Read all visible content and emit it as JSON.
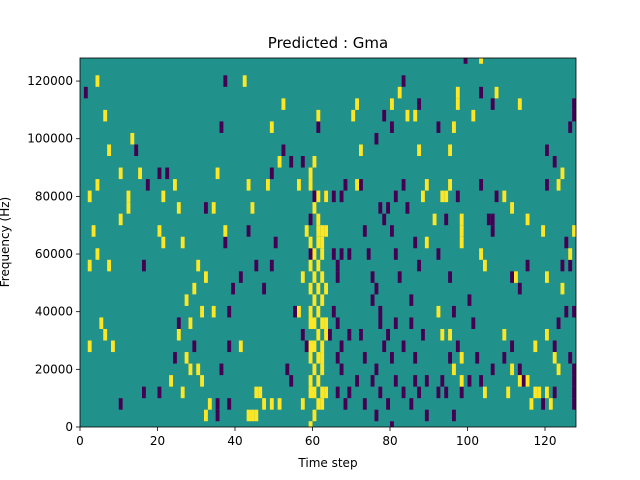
{
  "chart_data": {
    "type": "heatmap",
    "title": "Predicted : Gma",
    "xlabel": "Time step",
    "ylabel": "Frequency (Hz)",
    "xlim": [
      0,
      128
    ],
    "ylim": [
      0,
      128000
    ],
    "xticks": [
      0,
      20,
      40,
      60,
      80,
      100,
      120
    ],
    "yticks": [
      0,
      20000,
      40000,
      60000,
      80000,
      100000,
      120000
    ],
    "xtick_labels": [
      "0",
      "20",
      "40",
      "60",
      "80",
      "100",
      "120"
    ],
    "ytick_labels": [
      "0",
      "20000",
      "40000",
      "60000",
      "80000",
      "100000",
      "120000"
    ],
    "grid": false,
    "colormap": {
      "background": "#21918c",
      "low": "#440154",
      "high": "#fde725"
    },
    "cell_width_steps": 1,
    "cell_height_hz": 4000,
    "low_cells": [
      [
        2,
        118000
      ],
      [
        38,
        122000
      ],
      [
        37,
        106000
      ],
      [
        15,
        98000
      ],
      [
        21,
        90000
      ],
      [
        23,
        90000
      ],
      [
        18,
        86000
      ],
      [
        17,
        58000
      ],
      [
        38,
        66000
      ],
      [
        44,
        70000
      ],
      [
        33,
        78000
      ],
      [
        40,
        50000
      ],
      [
        39,
        42000
      ],
      [
        26,
        38000
      ],
      [
        39,
        30000
      ],
      [
        30,
        30000
      ],
      [
        25,
        26000
      ],
      [
        37,
        22000
      ],
      [
        17,
        14000
      ],
      [
        21,
        14000
      ],
      [
        11,
        10000
      ],
      [
        36,
        10000
      ],
      [
        39,
        10000
      ],
      [
        36,
        6000
      ],
      [
        48,
        50000
      ],
      [
        56,
        42000
      ],
      [
        58,
        34000
      ],
      [
        59,
        30000
      ],
      [
        60,
        74000
      ],
      [
        61,
        82000
      ],
      [
        58,
        94000
      ],
      [
        64,
        82000
      ],
      [
        66,
        82000
      ],
      [
        68,
        82000
      ],
      [
        69,
        86000
      ],
      [
        73,
        86000
      ],
      [
        66,
        62000
      ],
      [
        67,
        58000
      ],
      [
        67,
        54000
      ],
      [
        68,
        62000
      ],
      [
        70,
        62000
      ],
      [
        75,
        62000
      ],
      [
        74,
        70000
      ],
      [
        78,
        78000
      ],
      [
        79,
        74000
      ],
      [
        80,
        78000
      ],
      [
        81,
        70000
      ],
      [
        82,
        62000
      ],
      [
        82,
        82000
      ],
      [
        84,
        86000
      ],
      [
        85,
        78000
      ],
      [
        83,
        54000
      ],
      [
        87,
        66000
      ],
      [
        88,
        58000
      ],
      [
        76,
        54000
      ],
      [
        77,
        50000
      ],
      [
        76,
        46000
      ],
      [
        78,
        42000
      ],
      [
        78,
        38000
      ],
      [
        80,
        34000
      ],
      [
        82,
        38000
      ],
      [
        86,
        46000
      ],
      [
        84,
        30000
      ],
      [
        86,
        38000
      ],
      [
        87,
        26000
      ],
      [
        89,
        34000
      ],
      [
        67,
        38000
      ],
      [
        68,
        30000
      ],
      [
        67,
        26000
      ],
      [
        68,
        22000
      ],
      [
        65,
        34000
      ],
      [
        66,
        42000
      ],
      [
        70,
        34000
      ],
      [
        73,
        34000
      ],
      [
        74,
        26000
      ],
      [
        77,
        22000
      ],
      [
        79,
        30000
      ],
      [
        81,
        26000
      ],
      [
        67,
        14000
      ],
      [
        70,
        14000
      ],
      [
        72,
        18000
      ],
      [
        76,
        18000
      ],
      [
        78,
        14000
      ],
      [
        80,
        10000
      ],
      [
        82,
        18000
      ],
      [
        84,
        14000
      ],
      [
        87,
        18000
      ],
      [
        88,
        14000
      ],
      [
        90,
        18000
      ],
      [
        93,
        14000
      ],
      [
        69,
        10000
      ],
      [
        74,
        10000
      ],
      [
        77,
        6000
      ],
      [
        81,
        2000
      ],
      [
        86,
        10000
      ],
      [
        90,
        6000
      ],
      [
        94,
        18000
      ],
      [
        95,
        14000
      ],
      [
        96,
        26000
      ],
      [
        98,
        30000
      ],
      [
        97,
        42000
      ],
      [
        96,
        54000
      ],
      [
        93,
        62000
      ],
      [
        95,
        74000
      ],
      [
        98,
        82000
      ],
      [
        106,
        74000
      ],
      [
        107,
        70000
      ],
      [
        108,
        82000
      ],
      [
        104,
        86000
      ],
      [
        107,
        74000
      ],
      [
        112,
        54000
      ],
      [
        114,
        50000
      ],
      [
        116,
        58000
      ],
      [
        125,
        58000
      ],
      [
        126,
        66000
      ],
      [
        127,
        58000
      ],
      [
        121,
        86000
      ],
      [
        121,
        98000
      ],
      [
        123,
        94000
      ],
      [
        127,
        106000
      ],
      [
        128,
        110000
      ],
      [
        128,
        114000
      ],
      [
        100,
        130000
      ],
      [
        104,
        118000
      ],
      [
        107,
        114000
      ],
      [
        93,
        106000
      ],
      [
        88,
        114000
      ],
      [
        84,
        122000
      ],
      [
        79,
        110000
      ],
      [
        81,
        106000
      ],
      [
        77,
        102000
      ],
      [
        62,
        106000
      ],
      [
        55,
        94000
      ],
      [
        53,
        98000
      ],
      [
        50,
        90000
      ],
      [
        124,
        38000
      ],
      [
        123,
        30000
      ],
      [
        126,
        42000
      ],
      [
        128,
        42000
      ],
      [
        128,
        22000
      ],
      [
        128,
        18000
      ],
      [
        128,
        14000
      ],
      [
        128,
        10000
      ],
      [
        127,
        26000
      ],
      [
        123,
        14000
      ],
      [
        120,
        10000
      ],
      [
        115,
        18000
      ],
      [
        114,
        22000
      ],
      [
        112,
        30000
      ],
      [
        110,
        26000
      ],
      [
        107,
        22000
      ],
      [
        104,
        18000
      ],
      [
        101,
        18000
      ],
      [
        99,
        14000
      ],
      [
        97,
        6000
      ],
      [
        101,
        46000
      ],
      [
        102,
        38000
      ],
      [
        103,
        26000
      ],
      [
        54,
        22000
      ],
      [
        55,
        18000
      ],
      [
        46,
        58000
      ],
      [
        50,
        58000
      ],
      [
        51,
        66000
      ],
      [
        42,
        54000
      ],
      [
        60,
        62000
      ]
    ],
    "high_cells": [
      [
        5,
        122000
      ],
      [
        43,
        122000
      ],
      [
        7,
        110000
      ],
      [
        14,
        102000
      ],
      [
        8,
        98000
      ],
      [
        11,
        90000
      ],
      [
        16,
        90000
      ],
      [
        5,
        86000
      ],
      [
        3,
        82000
      ],
      [
        13,
        82000
      ],
      [
        13,
        78000
      ],
      [
        11,
        74000
      ],
      [
        4,
        70000
      ],
      [
        21,
        70000
      ],
      [
        22,
        66000
      ],
      [
        27,
        66000
      ],
      [
        5,
        62000
      ],
      [
        3,
        58000
      ],
      [
        8,
        58000
      ],
      [
        31,
        58000
      ],
      [
        33,
        54000
      ],
      [
        30,
        50000
      ],
      [
        28,
        46000
      ],
      [
        32,
        42000
      ],
      [
        35,
        42000
      ],
      [
        29,
        38000
      ],
      [
        6,
        38000
      ],
      [
        7,
        34000
      ],
      [
        26,
        34000
      ],
      [
        3,
        30000
      ],
      [
        9,
        30000
      ],
      [
        28,
        26000
      ],
      [
        29,
        22000
      ],
      [
        31,
        22000
      ],
      [
        32,
        18000
      ],
      [
        27,
        14000
      ],
      [
        34,
        10000
      ],
      [
        33,
        6000
      ],
      [
        24,
        18000
      ],
      [
        46,
        14000
      ],
      [
        47,
        14000
      ],
      [
        48,
        10000
      ],
      [
        44,
        6000
      ],
      [
        45,
        6000
      ],
      [
        46,
        6000
      ],
      [
        50,
        10000
      ],
      [
        52,
        10000
      ],
      [
        58,
        10000
      ],
      [
        60,
        2000
      ],
      [
        61,
        6000
      ],
      [
        62,
        10000
      ],
      [
        61,
        14000
      ],
      [
        62,
        18000
      ],
      [
        61,
        22000
      ],
      [
        62,
        26000
      ],
      [
        61,
        30000
      ],
      [
        62,
        34000
      ],
      [
        61,
        38000
      ],
      [
        62,
        42000
      ],
      [
        61,
        46000
      ],
      [
        62,
        50000
      ],
      [
        61,
        54000
      ],
      [
        62,
        58000
      ],
      [
        61,
        62000
      ],
      [
        62,
        66000
      ],
      [
        62,
        70000
      ],
      [
        62,
        74000
      ],
      [
        61,
        78000
      ],
      [
        62,
        82000
      ],
      [
        60,
        86000
      ],
      [
        60,
        90000
      ],
      [
        61,
        94000
      ],
      [
        62,
        110000
      ],
      [
        63,
        66000
      ],
      [
        63,
        70000
      ],
      [
        63,
        62000
      ],
      [
        63,
        54000
      ],
      [
        63,
        46000
      ],
      [
        63,
        38000
      ],
      [
        63,
        30000
      ],
      [
        63,
        26000
      ],
      [
        63,
        22000
      ],
      [
        63,
        14000
      ],
      [
        63,
        10000
      ],
      [
        60,
        14000
      ],
      [
        60,
        18000
      ],
      [
        60,
        26000
      ],
      [
        60,
        30000
      ],
      [
        60,
        38000
      ],
      [
        60,
        42000
      ],
      [
        60,
        50000
      ],
      [
        60,
        58000
      ],
      [
        60,
        66000
      ],
      [
        64,
        34000
      ],
      [
        64,
        38000
      ],
      [
        64,
        50000
      ],
      [
        64,
        70000
      ],
      [
        64,
        82000
      ],
      [
        57,
        86000
      ],
      [
        59,
        70000
      ],
      [
        57,
        42000
      ],
      [
        52,
        94000
      ],
      [
        50,
        106000
      ],
      [
        53,
        114000
      ],
      [
        58,
        54000
      ],
      [
        64,
        14000
      ],
      [
        49,
        86000
      ],
      [
        36,
        90000
      ],
      [
        22,
        82000
      ],
      [
        25,
        86000
      ],
      [
        26,
        78000
      ],
      [
        35,
        78000
      ],
      [
        38,
        70000
      ],
      [
        44,
        86000
      ],
      [
        45,
        78000
      ],
      [
        42,
        30000
      ],
      [
        72,
        86000
      ],
      [
        73,
        98000
      ],
      [
        71,
        110000
      ],
      [
        72,
        114000
      ],
      [
        81,
        114000
      ],
      [
        83,
        118000
      ],
      [
        85,
        110000
      ],
      [
        87,
        110000
      ],
      [
        88,
        98000
      ],
      [
        90,
        86000
      ],
      [
        89,
        82000
      ],
      [
        95,
        82000
      ],
      [
        96,
        86000
      ],
      [
        99,
        74000
      ],
      [
        99,
        66000
      ],
      [
        99,
        70000
      ],
      [
        104,
        62000
      ],
      [
        105,
        58000
      ],
      [
        110,
        82000
      ],
      [
        112,
        78000
      ],
      [
        116,
        74000
      ],
      [
        120,
        70000
      ],
      [
        124,
        86000
      ],
      [
        125,
        90000
      ],
      [
        128,
        70000
      ],
      [
        127,
        62000
      ],
      [
        113,
        54000
      ],
      [
        121,
        54000
      ],
      [
        125,
        50000
      ],
      [
        124,
        22000
      ],
      [
        123,
        26000
      ],
      [
        121,
        34000
      ],
      [
        118,
        30000
      ],
      [
        112,
        22000
      ],
      [
        114,
        18000
      ],
      [
        116,
        18000
      ],
      [
        118,
        14000
      ],
      [
        119,
        14000
      ],
      [
        121,
        14000
      ],
      [
        122,
        10000
      ],
      [
        117,
        10000
      ],
      [
        111,
        14000
      ],
      [
        105,
        14000
      ],
      [
        99,
        18000
      ],
      [
        97,
        22000
      ],
      [
        99,
        26000
      ],
      [
        96,
        34000
      ],
      [
        94,
        34000
      ],
      [
        93,
        42000
      ],
      [
        90,
        66000
      ],
      [
        92,
        74000
      ],
      [
        94,
        82000
      ],
      [
        96,
        98000
      ],
      [
        97,
        106000
      ],
      [
        98,
        114000
      ],
      [
        98,
        118000
      ],
      [
        102,
        110000
      ],
      [
        108,
        118000
      ],
      [
        114,
        114000
      ],
      [
        104,
        130000
      ],
      [
        110,
        34000
      ]
    ]
  }
}
